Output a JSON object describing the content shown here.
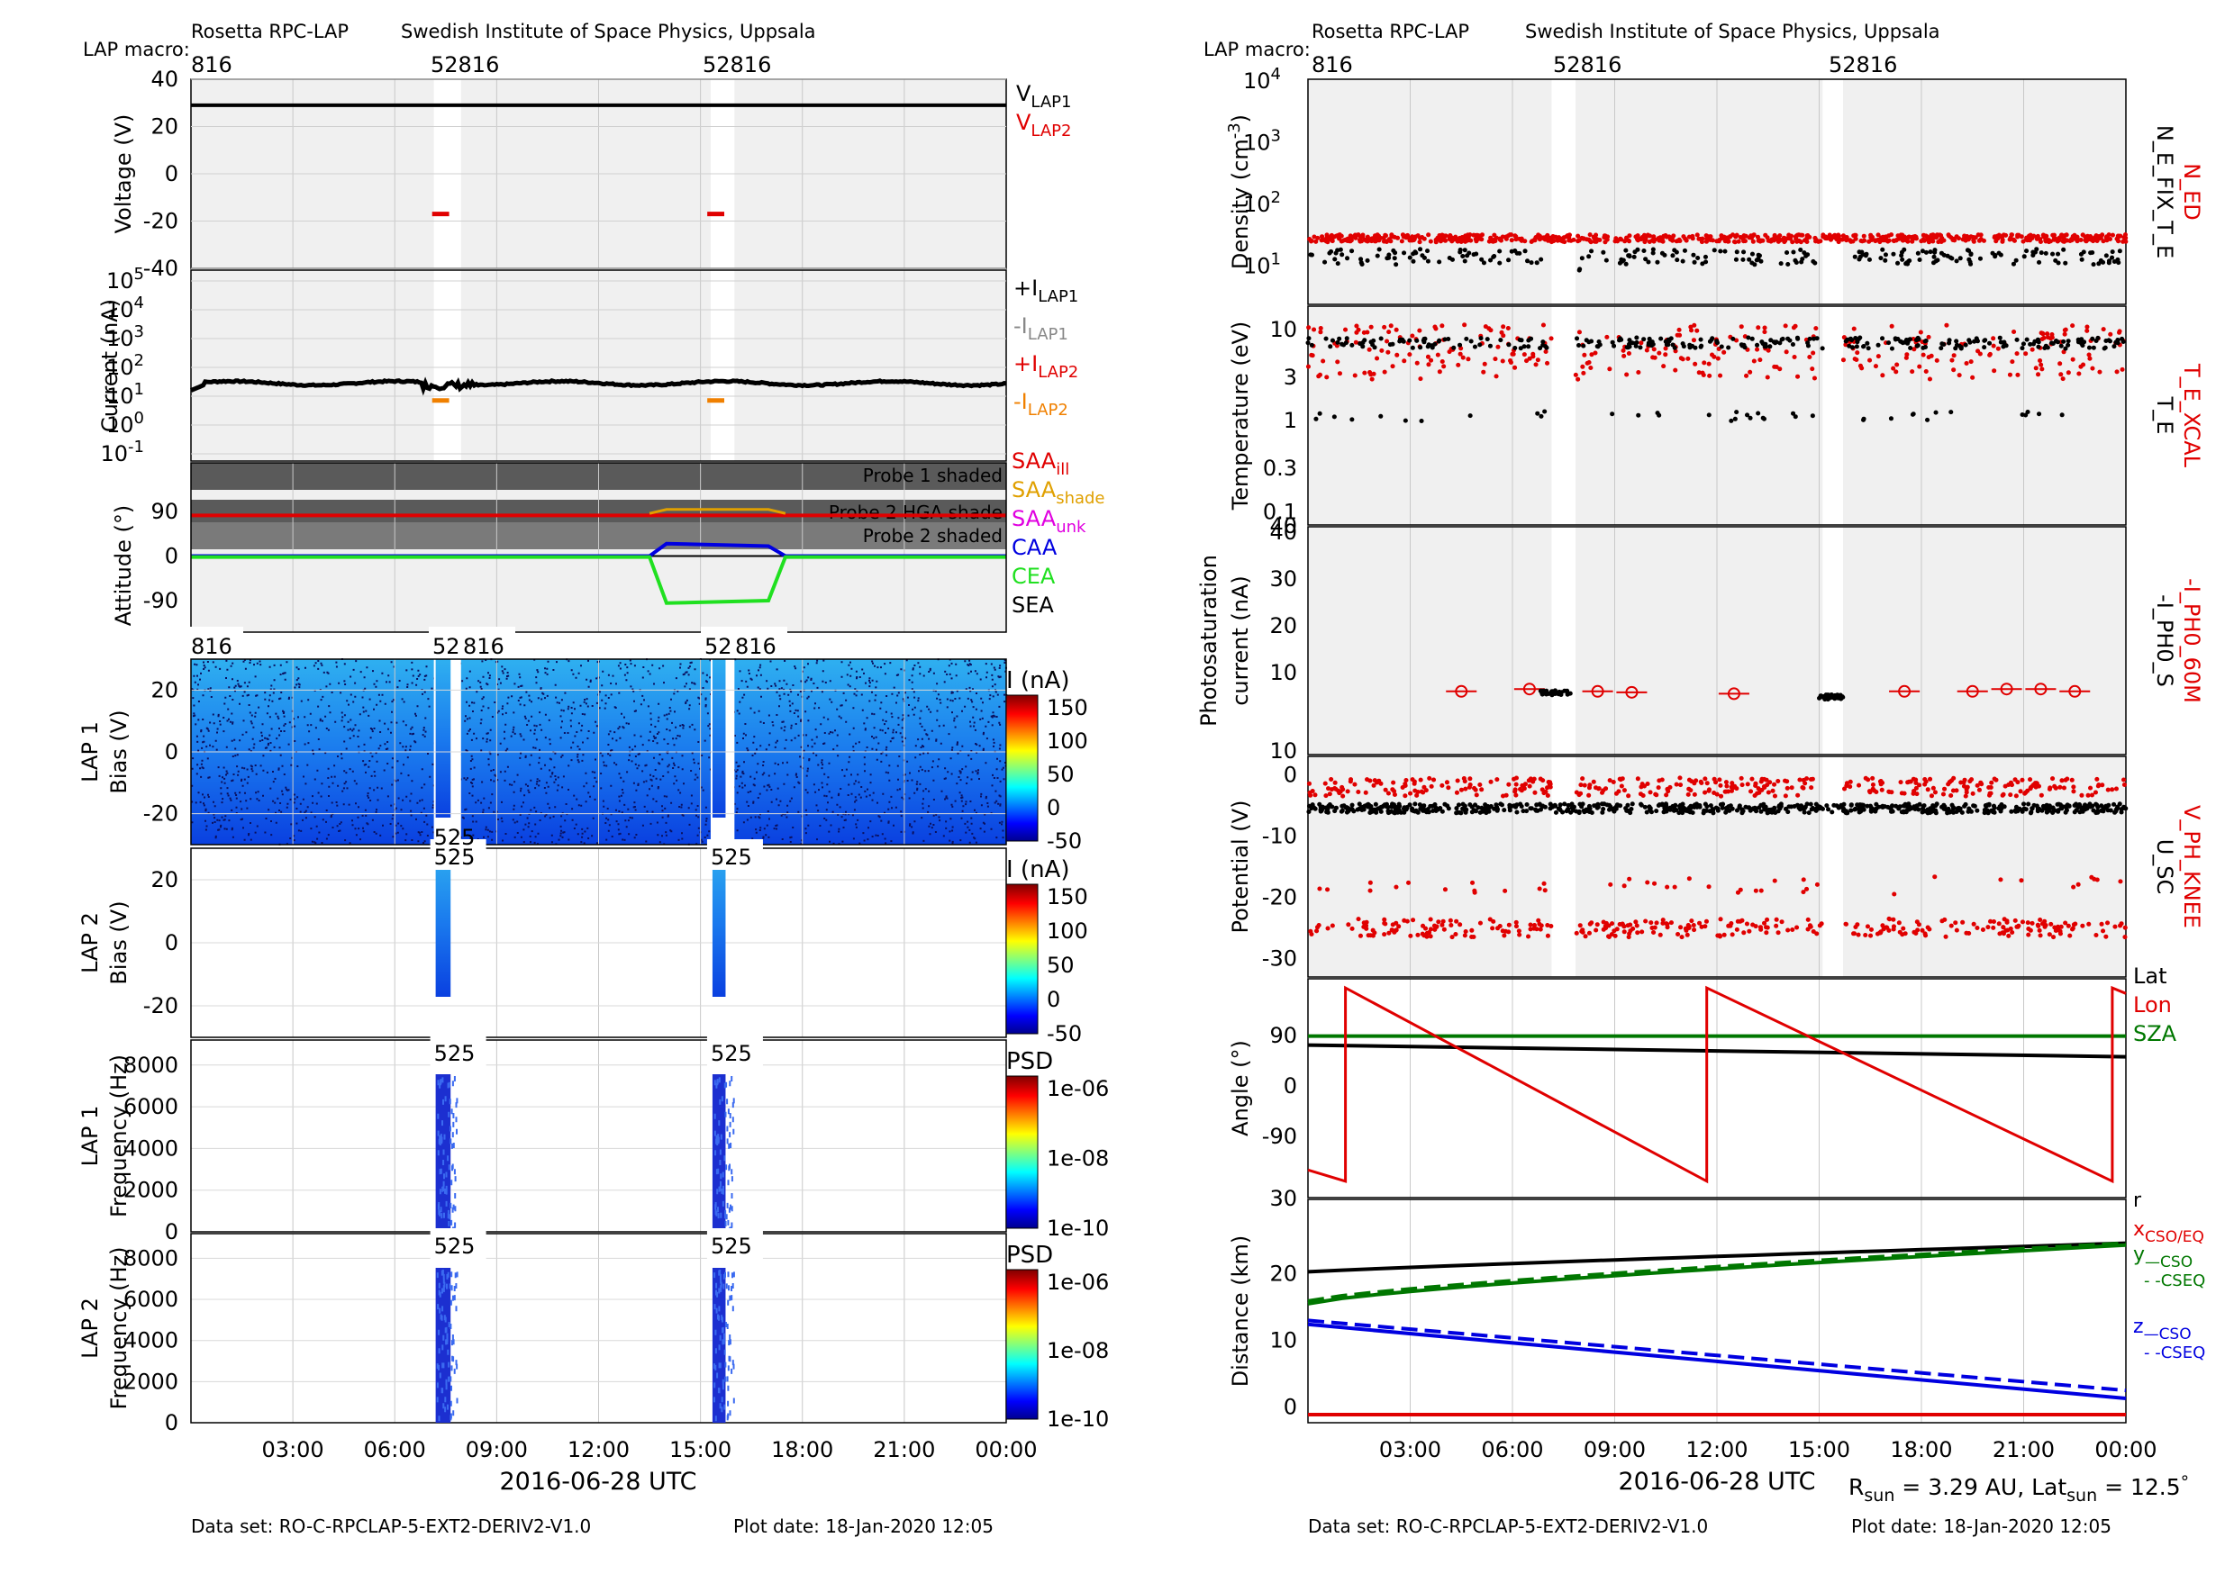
{
  "left": {
    "instrument": "Rosetta RPC-LAP",
    "institute": "Swedish Institute of Space Physics, Uppsala",
    "macro_label": "LAP macro:",
    "macros": [
      "816",
      "52816",
      "52816"
    ],
    "spec_macros": [
      "816",
      "52",
      "816",
      "52",
      "816"
    ],
    "spec_macro_525": "525",
    "xlabel": "2016-06-28 UTC",
    "xticks": [
      "03:00",
      "06:00",
      "09:00",
      "12:00",
      "15:00",
      "18:00",
      "21:00",
      "00:00"
    ],
    "footer_dataset": "Data set: RO-C-RPCLAP-5-EXT2-DERIV2-V1.0",
    "footer_plotdate": "Plot date: 18-Jan-2020 12:05",
    "panels": {
      "voltage": {
        "ylabel": "Voltage (V)",
        "yticks": [
          "40",
          "20",
          "0",
          "-20",
          "-40"
        ],
        "legend": [
          {
            "base": "V",
            "sub": "LAP1",
            "color": "#000000"
          },
          {
            "base": "V",
            "sub": "LAP2",
            "color": "#e00000"
          }
        ]
      },
      "current": {
        "ylabel": "Current (nA)",
        "yticks": [
          "10",
          "10",
          "10",
          "10",
          "10",
          "10",
          "10"
        ],
        "yexp": [
          "5",
          "4",
          "3",
          "2",
          "1",
          "0",
          "-1"
        ],
        "legend": [
          {
            "base": "+I",
            "sub": "LAP1",
            "color": "#000000"
          },
          {
            "base": "-I",
            "sub": "LAP1",
            "color": "#888888"
          },
          {
            "base": "+I",
            "sub": "LAP2",
            "color": "#e00000"
          },
          {
            "base": "-I",
            "sub": "LAP2",
            "color": "#f08000"
          }
        ]
      },
      "attitude": {
        "ylabel": "Attitude (°)",
        "yticks": [
          "90",
          "0",
          "-90"
        ],
        "shade_labels": [
          "Probe 1 shaded",
          "Probe 2 HGA shade",
          "Probe 2 shaded"
        ],
        "legend": [
          {
            "base": "SAA",
            "sub": "ill",
            "color": "#e00000"
          },
          {
            "base": "SAA",
            "sub": "shade",
            "color": "#e0a000"
          },
          {
            "base": "SAA",
            "sub": "unk",
            "color": "#e000e0"
          },
          {
            "base": "CAA",
            "sub": "",
            "color": "#0000e0"
          },
          {
            "base": "CEA",
            "sub": "",
            "color": "#20e020"
          },
          {
            "base": "SEA",
            "sub": "",
            "color": "#000000"
          }
        ]
      },
      "lap1bias": {
        "ylabel1": "LAP 1",
        "ylabel2": "Bias (V)",
        "yticks": [
          "20",
          "0",
          "-20"
        ],
        "cbar_title": "I (nA)",
        "cbar_ticks": [
          "150",
          "100",
          "50",
          "0",
          "-50"
        ]
      },
      "lap2bias": {
        "ylabel1": "LAP 2",
        "ylabel2": "Bias (V)",
        "yticks": [
          "20",
          "0",
          "-20"
        ],
        "cbar_title": "I (nA)",
        "cbar_ticks": [
          "150",
          "100",
          "50",
          "0",
          "-50"
        ]
      },
      "lap1freq": {
        "ylabel1": "LAP 1",
        "ylabel2": "Frequency (Hz)",
        "yticks": [
          "8000",
          "6000",
          "4000",
          "2000",
          "0"
        ],
        "cbar_title": "PSD",
        "cbar_ticks": [
          "1e-06",
          "1e-08",
          "1e-10"
        ]
      },
      "lap2freq": {
        "ylabel1": "LAP 2",
        "ylabel2": "Frequency (Hz)",
        "yticks": [
          "8000",
          "6000",
          "4000",
          "2000",
          "0"
        ],
        "cbar_title": "PSD",
        "cbar_ticks": [
          "1e-06",
          "1e-08",
          "1e-10"
        ]
      }
    }
  },
  "right": {
    "instrument": "Rosetta RPC-LAP",
    "institute": "Swedish Institute of Space Physics, Uppsala",
    "macro_label": "LAP macro:",
    "macros": [
      "816",
      "52816",
      "52816"
    ],
    "xlabel": "2016-06-28 UTC",
    "xticks": [
      "03:00",
      "06:00",
      "09:00",
      "12:00",
      "15:00",
      "18:00",
      "21:00",
      "00:00"
    ],
    "footer_dataset": "Data set: RO-C-RPCLAP-5-EXT2-DERIV2-V1.0",
    "footer_plotdate": "Plot date: 18-Jan-2020 12:05",
    "rsun_text": "R",
    "rsun_sub": "sun",
    "rsun_value": " = 3.29 AU, Lat",
    "lat_sub": "sun",
    "lat_value": " = 12.5",
    "deg_symbol": "°",
    "panels": {
      "density": {
        "ylabel": "Density (cm",
        "ylabel_exp": "-3",
        "ylabel_end": ")",
        "yticks": [
          "10",
          "10",
          "10",
          "10"
        ],
        "yexp": [
          "4",
          "3",
          "2",
          "1"
        ],
        "legend_red": "N_ED",
        "legend_black": "N_E_FIX_T_E"
      },
      "temperature": {
        "ylabel": "Temperature (eV)",
        "yticks": [
          "10",
          "3",
          "1",
          "0.3",
          "0.1"
        ],
        "legend_red": "T_E_XCAL",
        "legend_black": "T_E"
      },
      "photo": {
        "ylabel1": "Photosaturation",
        "ylabel2": "current (nA)",
        "yticks": [
          "40",
          "30",
          "20",
          "10",
          "10"
        ],
        "legend_red": "-I_PH0_60M",
        "legend_black": "-I_PH0_S"
      },
      "potential": {
        "ylabel": "Potential (V)",
        "yticks": [
          "0",
          "-10",
          "-20",
          "-30"
        ],
        "legend_red": "V_PH_KNEE",
        "legend_black": "U_SC"
      },
      "angle": {
        "ylabel": "Angle (°)",
        "yticks": [
          "90",
          "0",
          "-90"
        ],
        "top_tick": "30",
        "legend": [
          {
            "text": "Lat",
            "color": "#000000"
          },
          {
            "text": "Lon",
            "color": "#e00000"
          },
          {
            "text": "SZA",
            "color": "#007700"
          }
        ]
      },
      "distance": {
        "ylabel": "Distance (km)",
        "yticks": [
          "20",
          "10",
          "0"
        ],
        "legend": [
          {
            "base": "r",
            "sub": "",
            "color": "#000000"
          },
          {
            "base": "x",
            "sub": "CSO/EQ",
            "color": "#e00000"
          },
          {
            "base": "y",
            "sub": "—CSO",
            "color": "#007700"
          },
          {
            "base": "",
            "sub": "- -CSEQ",
            "color": "#007700"
          },
          {
            "base": "z",
            "sub": "—CSO",
            "color": "#0000e0"
          },
          {
            "base": "",
            "sub": "- -CSEQ",
            "color": "#0000e0"
          }
        ]
      }
    }
  },
  "chart_data": [
    {
      "type": "line",
      "title": "",
      "xlabel": "2016-06-28 UTC",
      "ylabel": "Voltage (V)",
      "ylim": [
        -40,
        40
      ],
      "series": [
        {
          "name": "V_LAP1",
          "x": [
            0,
            24
          ],
          "values": [
            29,
            29
          ]
        },
        {
          "name": "V_LAP2",
          "x": [
            [
              7.1,
              7.6
            ],
            [
              15.2,
              15.7
            ]
          ],
          "values": [
            -17,
            -17
          ]
        }
      ]
    },
    {
      "type": "scatter",
      "title": "",
      "xlabel": "2016-06-28 UTC",
      "ylabel": "Current (nA)",
      "yscale": "log",
      "ylim": [
        0.1,
        100000
      ],
      "series": [
        {
          "name": "+I_LAP1",
          "approx_value": 30
        },
        {
          "name": "-I_LAP2",
          "x": [
            [
              7.1,
              7.6
            ],
            [
              15.2,
              15.7
            ]
          ],
          "values": [
            7,
            7
          ]
        }
      ]
    },
    {
      "type": "line",
      "title": "",
      "xlabel": "2016-06-28 UTC",
      "ylabel": "Attitude (°)",
      "ylim": [
        -180,
        180
      ],
      "series": [
        {
          "name": "SAA_ill",
          "approx_value": 82
        },
        {
          "name": "CAA",
          "x": [
            0,
            13.5,
            14,
            17,
            17.5,
            24
          ],
          "values": [
            0,
            0,
            25,
            20,
            0,
            0
          ]
        },
        {
          "name": "CEA",
          "x": [
            0,
            13.5,
            14,
            17,
            17.5,
            24
          ],
          "values": [
            -2,
            -2,
            -95,
            -90,
            -2,
            -2
          ]
        }
      ]
    },
    {
      "type": "heatmap",
      "title": "",
      "ylabel": "Frequency (Hz)",
      "note": "LAP spectrograms present only in windows 07:00-07:45 and 15:05-15:45",
      "psd_range": [
        "1e-10",
        "1e-06"
      ]
    },
    {
      "type": "scatter",
      "title": "",
      "ylabel": "Density (cm-3)",
      "yscale": "log",
      "ylim": [
        1,
        10000
      ],
      "series": [
        {
          "name": "N_ED",
          "approx_value": 28
        },
        {
          "name": "N_E_FIX_T_E",
          "approx_value": 15
        }
      ]
    },
    {
      "type": "scatter",
      "title": "",
      "ylabel": "Temperature (eV)",
      "yscale": "log",
      "series": [
        {
          "name": "T_E_XCAL",
          "approx_value": 5
        },
        {
          "name": "T_E",
          "approx_value": 8
        }
      ]
    },
    {
      "type": "scatter",
      "title": "",
      "ylabel": "Photosaturation current (nA)",
      "ylim": [
        0,
        40
      ],
      "series": [
        {
          "name": "-I_PH0_60M",
          "x": [
            4.5,
            6.5,
            8.5,
            9.5,
            12.5,
            17.5,
            19.5,
            20.5,
            21.5,
            22.5
          ],
          "values": [
            6,
            6.5,
            6,
            5.8,
            5.5,
            6,
            6,
            6.5,
            6.5,
            6
          ]
        },
        {
          "name": "-I_PH0_S",
          "x": [
            7.3,
            15.4
          ],
          "values": [
            5,
            4.5
          ]
        }
      ]
    },
    {
      "type": "scatter",
      "title": "",
      "ylabel": "Potential (V)",
      "ylim": [
        -30,
        5
      ],
      "series": [
        {
          "name": "U_SC",
          "approx_value": -5
        },
        {
          "name": "V_PH_KNEE",
          "approx_values": [
            -2,
            -25
          ]
        }
      ]
    },
    {
      "type": "line",
      "title": "",
      "ylabel": "Angle (°)",
      "ylim": [
        -180,
        180
      ],
      "series": [
        {
          "name": "Lat",
          "x": [
            0,
            24
          ],
          "values": [
            73,
            52
          ]
        },
        {
          "name": "SZA",
          "x": [
            0,
            24
          ],
          "values": [
            89,
            89
          ]
        },
        {
          "name": "Lon",
          "x": [
            0,
            1.1,
            1.1,
            11.7,
            11.7,
            23.6,
            23.6,
            24
          ],
          "values": [
            -150,
            -170,
            175,
            -170,
            175,
            -170,
            175,
            165
          ]
        }
      ]
    },
    {
      "type": "line",
      "title": "",
      "ylabel": "Distance (km)",
      "ylim": [
        -1,
        30
      ],
      "series": [
        {
          "name": "r",
          "x": [
            0,
            24
          ],
          "values": [
            20.3,
            24.6
          ]
        },
        {
          "name": "y CSO",
          "x": [
            0,
            24
          ],
          "values": [
            15.5,
            24.3
          ]
        },
        {
          "name": "z CSO",
          "x": [
            0,
            24
          ],
          "values": [
            12.4,
            1.3
          ]
        },
        {
          "name": "z CSEQ",
          "x": [
            0,
            24
          ],
          "values": [
            13,
            2.5
          ]
        },
        {
          "name": "x CSO/EQ",
          "x": [
            0,
            24
          ],
          "values": [
            -1.4,
            -1.4
          ]
        }
      ]
    }
  ]
}
